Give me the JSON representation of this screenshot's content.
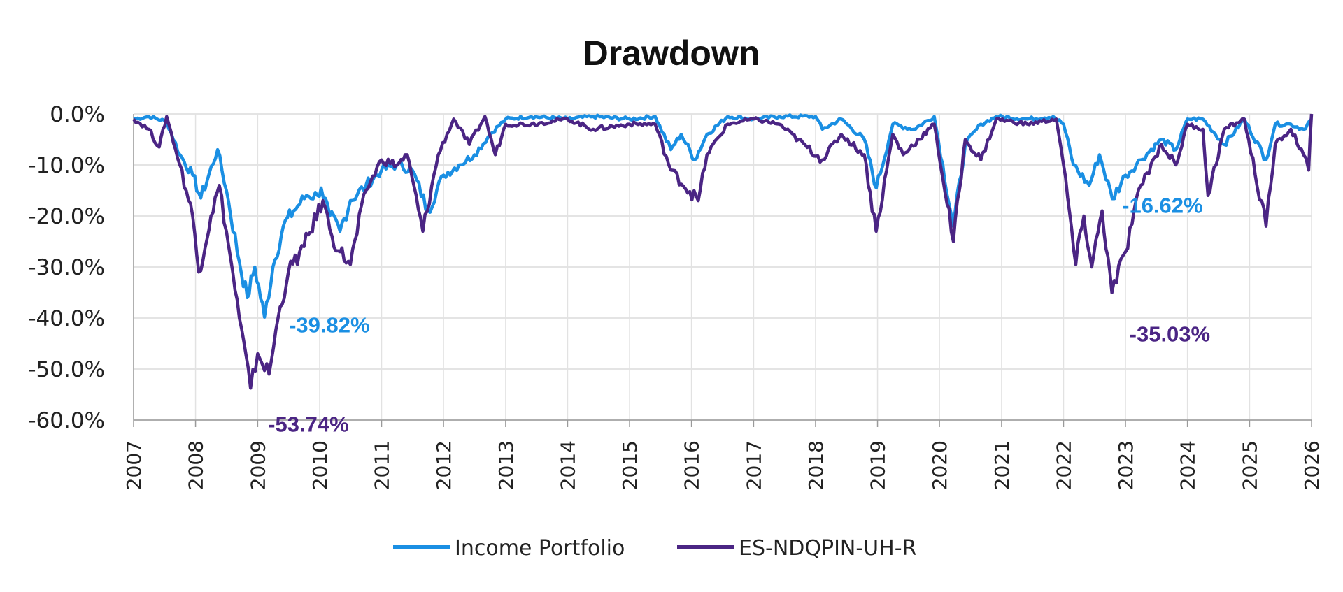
{
  "chart_data": {
    "type": "line",
    "title": "Drawdown",
    "xlabel": "",
    "ylabel": "",
    "ylim": [
      -60,
      0
    ],
    "xlim": [
      "2007-01-01",
      "2026-01-01"
    ],
    "y_ticks": [
      "0.0%",
      "-10.0%",
      "-20.0%",
      "-30.0%",
      "-40.0%",
      "-50.0%",
      "-60.0%"
    ],
    "y_tick_values": [
      0,
      -10,
      -20,
      -30,
      -40,
      -50,
      -60
    ],
    "x_ticks": [
      "2007",
      "2008",
      "2009",
      "2010",
      "2011",
      "2012",
      "2013",
      "2014",
      "2015",
      "2016",
      "2017",
      "2018",
      "2019",
      "2020",
      "2021",
      "2022",
      "2023",
      "2024",
      "2025",
      "2026"
    ],
    "grid": true,
    "legend_position": "bottom",
    "series": [
      {
        "name": "Income Portfolio",
        "color": "#1a8fe3",
        "points": [
          [
            "2007-01-01",
            -1
          ],
          [
            "2007-04-01",
            -0.5
          ],
          [
            "2007-07-15",
            -1.5
          ],
          [
            "2007-10-01",
            -8
          ],
          [
            "2007-12-15",
            -12
          ],
          [
            "2008-02-01",
            -16.5
          ],
          [
            "2008-05-10",
            -7
          ],
          [
            "2008-07-01",
            -15
          ],
          [
            "2008-09-15",
            -29
          ],
          [
            "2008-11-01",
            -36
          ],
          [
            "2008-12-15",
            -30
          ],
          [
            "2009-02-10",
            -39.82
          ],
          [
            "2009-04-01",
            -30
          ],
          [
            "2009-06-01",
            -22
          ],
          [
            "2009-08-01",
            -19
          ],
          [
            "2009-10-15",
            -16
          ],
          [
            "2009-12-20",
            -16
          ],
          [
            "2010-01-10",
            -14.5
          ],
          [
            "2010-03-01",
            -20
          ],
          [
            "2010-05-01",
            -23
          ],
          [
            "2010-07-01",
            -17
          ],
          [
            "2010-10-01",
            -14
          ],
          [
            "2011-01-01",
            -11
          ],
          [
            "2011-04-01",
            -10
          ],
          [
            "2011-07-01",
            -11
          ],
          [
            "2011-10-01",
            -19
          ],
          [
            "2012-01-01",
            -12
          ],
          [
            "2012-04-01",
            -10
          ],
          [
            "2012-07-01",
            -8
          ],
          [
            "2012-10-01",
            -4
          ],
          [
            "2013-01-01",
            -1
          ],
          [
            "2013-06-01",
            -0.5
          ],
          [
            "2014-01-01",
            -1
          ],
          [
            "2014-06-01",
            -0.5
          ],
          [
            "2015-01-01",
            -1
          ],
          [
            "2015-06-01",
            -0.5
          ],
          [
            "2015-09-01",
            -7
          ],
          [
            "2015-11-01",
            -4
          ],
          [
            "2016-01-20",
            -9
          ],
          [
            "2016-04-01",
            -4
          ],
          [
            "2016-08-01",
            -0.5
          ],
          [
            "2017-01-01",
            -1
          ],
          [
            "2017-06-01",
            -0.5
          ],
          [
            "2018-01-01",
            -0.5
          ],
          [
            "2018-02-10",
            -3
          ],
          [
            "2018-06-01",
            -1
          ],
          [
            "2018-10-15",
            -5
          ],
          [
            "2018-12-25",
            -14.5
          ],
          [
            "2019-04-01",
            -2
          ],
          [
            "2019-08-01",
            -3
          ],
          [
            "2019-12-01",
            -0.5
          ],
          [
            "2020-03-23",
            -22
          ],
          [
            "2020-06-01",
            -6
          ],
          [
            "2020-09-01",
            -2
          ],
          [
            "2020-12-01",
            -0.5
          ],
          [
            "2021-06-01",
            -1
          ],
          [
            "2021-11-01",
            -0.5
          ],
          [
            "2022-01-01",
            -2
          ],
          [
            "2022-03-01",
            -10
          ],
          [
            "2022-06-01",
            -14
          ],
          [
            "2022-08-01",
            -8
          ],
          [
            "2022-10-15",
            -16.62
          ],
          [
            "2023-01-01",
            -12
          ],
          [
            "2023-04-01",
            -9
          ],
          [
            "2023-08-01",
            -5
          ],
          [
            "2023-10-25",
            -7
          ],
          [
            "2024-01-01",
            -1
          ],
          [
            "2024-04-01",
            -1
          ],
          [
            "2024-08-05",
            -6
          ],
          [
            "2024-12-01",
            -1
          ],
          [
            "2025-04-08",
            -9
          ],
          [
            "2025-06-01",
            -2
          ],
          [
            "2025-09-01",
            -2
          ],
          [
            "2025-11-15",
            -3
          ],
          [
            "2026-01-01",
            -1
          ]
        ]
      },
      {
        "name": "ES-NDQPIN-UH-R",
        "color": "#4b2584",
        "points": [
          [
            "2007-01-01",
            -1
          ],
          [
            "2007-04-01",
            -3
          ],
          [
            "2007-06-01",
            -6.5
          ],
          [
            "2007-07-15",
            -0.5
          ],
          [
            "2007-10-01",
            -10
          ],
          [
            "2007-12-15",
            -20
          ],
          [
            "2008-01-20",
            -31
          ],
          [
            "2008-04-01",
            -20
          ],
          [
            "2008-05-20",
            -14
          ],
          [
            "2008-07-01",
            -23
          ],
          [
            "2008-09-15",
            -40
          ],
          [
            "2008-11-20",
            -53.74
          ],
          [
            "2009-01-01",
            -47
          ],
          [
            "2009-03-09",
            -51
          ],
          [
            "2009-05-01",
            -40
          ],
          [
            "2009-07-01",
            -31
          ],
          [
            "2009-10-01",
            -26
          ],
          [
            "2010-01-20",
            -17
          ],
          [
            "2010-03-15",
            -24
          ],
          [
            "2010-05-01",
            -27
          ],
          [
            "2010-07-01",
            -29.5
          ],
          [
            "2010-10-01",
            -15
          ],
          [
            "2011-01-01",
            -9
          ],
          [
            "2011-04-01",
            -10
          ],
          [
            "2011-06-01",
            -8
          ],
          [
            "2011-09-01",
            -23
          ],
          [
            "2011-12-01",
            -8
          ],
          [
            "2012-03-01",
            -1
          ],
          [
            "2012-06-01",
            -6
          ],
          [
            "2012-09-01",
            -0.5
          ],
          [
            "2012-11-01",
            -8
          ],
          [
            "2013-01-01",
            -2
          ],
          [
            "2013-06-01",
            -2
          ],
          [
            "2014-01-01",
            -1
          ],
          [
            "2014-06-01",
            -3
          ],
          [
            "2015-01-01",
            -2
          ],
          [
            "2015-06-01",
            -2
          ],
          [
            "2015-09-01",
            -11
          ],
          [
            "2016-02-10",
            -17
          ],
          [
            "2016-04-01",
            -8
          ],
          [
            "2016-08-01",
            -2
          ],
          [
            "2017-01-01",
            -1
          ],
          [
            "2017-06-01",
            -2
          ],
          [
            "2018-02-09",
            -9
          ],
          [
            "2018-06-01",
            -4
          ],
          [
            "2018-10-15",
            -8
          ],
          [
            "2018-12-24",
            -23
          ],
          [
            "2019-04-01",
            -4
          ],
          [
            "2019-06-01",
            -8
          ],
          [
            "2019-12-01",
            -2
          ],
          [
            "2020-03-23",
            -25
          ],
          [
            "2020-06-01",
            -5
          ],
          [
            "2020-09-01",
            -9
          ],
          [
            "2020-12-01",
            -1
          ],
          [
            "2021-06-01",
            -2
          ],
          [
            "2021-11-19",
            -1
          ],
          [
            "2022-01-01",
            -10
          ],
          [
            "2022-03-14",
            -29.5
          ],
          [
            "2022-05-01",
            -20
          ],
          [
            "2022-06-16",
            -30
          ],
          [
            "2022-08-16",
            -19
          ],
          [
            "2022-10-13",
            -35.03
          ],
          [
            "2023-01-01",
            -27
          ],
          [
            "2023-04-01",
            -14
          ],
          [
            "2023-08-01",
            -6
          ],
          [
            "2023-10-25",
            -10
          ],
          [
            "2024-01-01",
            -2
          ],
          [
            "2024-04-01",
            -3
          ],
          [
            "2024-05-01",
            -16
          ],
          [
            "2024-08-05",
            -3
          ],
          [
            "2024-12-01",
            -1
          ],
          [
            "2025-04-08",
            -22
          ],
          [
            "2025-06-01",
            -6
          ],
          [
            "2025-09-01",
            -3
          ],
          [
            "2025-11-15",
            -8
          ],
          [
            "2025-12-15",
            -11
          ],
          [
            "2026-01-01",
            0
          ]
        ]
      }
    ],
    "annotations": [
      {
        "text": "-39.82%",
        "series": "Income Portfolio",
        "x": "2009-02-10",
        "y": -39.82,
        "color": "#1a8fe3"
      },
      {
        "text": "-53.74%",
        "series": "ES-NDQPIN-UH-R",
        "x": "2008-11-20",
        "y": -53.74,
        "color": "#4b2584"
      },
      {
        "text": "-16.62%",
        "series": "Income Portfolio",
        "x": "2022-10-15",
        "y": -16.62,
        "color": "#1a8fe3"
      },
      {
        "text": "-35.03%",
        "series": "ES-NDQPIN-UH-R",
        "x": "2022-10-13",
        "y": -35.03,
        "color": "#4b2584"
      }
    ]
  }
}
